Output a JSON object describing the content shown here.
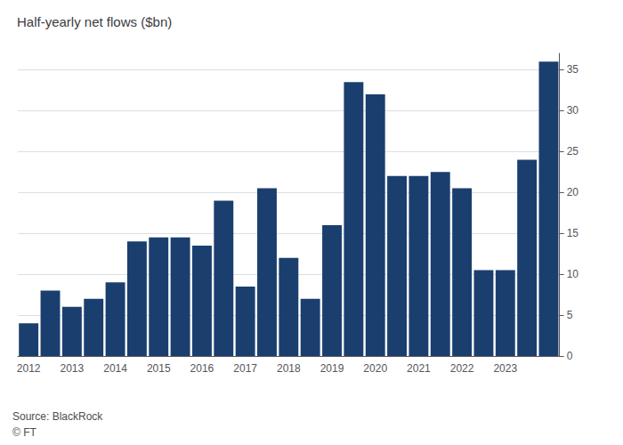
{
  "chart_data": {
    "type": "bar",
    "title": "Half-yearly net flows ($bn)",
    "categories": [
      "2012",
      null,
      "2013",
      null,
      "2014",
      null,
      "2015",
      null,
      "2016",
      null,
      "2017",
      null,
      "2018",
      null,
      "2019",
      null,
      "2020",
      null,
      "2021",
      null,
      "2022",
      null,
      "2023",
      null,
      null
    ],
    "values": [
      4.0,
      8.0,
      6.0,
      7.0,
      9.0,
      14.0,
      14.5,
      14.5,
      13.5,
      19.0,
      8.5,
      20.5,
      12.0,
      7.0,
      16.0,
      33.5,
      32.0,
      22.0,
      22.0,
      22.5,
      20.5,
      10.5,
      10.5,
      24.0,
      36.0
    ],
    "color": "#1a3f6f",
    "ylim": [
      0,
      37
    ],
    "yticks": [
      0,
      5,
      10,
      15,
      20,
      25,
      30,
      35
    ],
    "grid": true,
    "annotations": [
      "Source: BlackRock",
      "© FT"
    ]
  }
}
